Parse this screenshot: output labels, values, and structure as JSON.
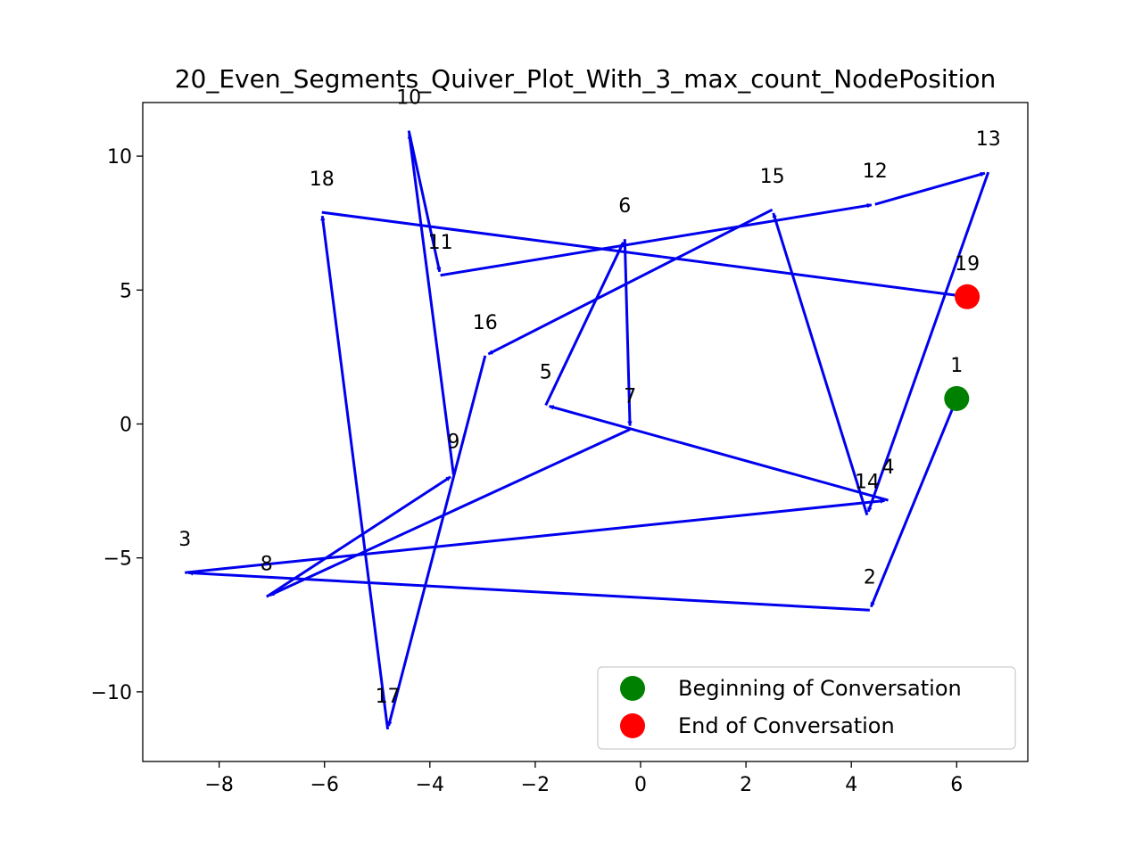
{
  "chart_data": {
    "type": "quiver",
    "title": "20_Even_Segments_Quiver_Plot_With_3_max_count_NodePosition",
    "xlabel": "",
    "ylabel": "",
    "xlim": [
      -9.45,
      7.35
    ],
    "ylim": [
      -12.6,
      12.0
    ],
    "x_ticks": [
      -8,
      -6,
      -4,
      -2,
      0,
      2,
      4,
      6
    ],
    "x_tick_labels": [
      "−8",
      "−6",
      "−4",
      "−2",
      "0",
      "2",
      "4",
      "6"
    ],
    "y_ticks": [
      -10,
      -5,
      0,
      5,
      10
    ],
    "y_tick_labels": [
      "−10",
      "−5",
      "0",
      "5",
      "10"
    ],
    "grid": false,
    "arrow_color": "#0000ee",
    "nodes": [
      {
        "label": "1",
        "x": 6.0,
        "y": 0.95
      },
      {
        "label": "2",
        "x": 4.35,
        "y": -6.95
      },
      {
        "label": "3",
        "x": -8.65,
        "y": -5.55
      },
      {
        "label": "4",
        "x": 4.7,
        "y": -2.85
      },
      {
        "label": "5",
        "x": -1.8,
        "y": 0.7
      },
      {
        "label": "6",
        "x": -0.3,
        "y": 6.9
      },
      {
        "label": "7",
        "x": -0.2,
        "y": -0.2
      },
      {
        "label": "8",
        "x": -7.1,
        "y": -6.45
      },
      {
        "label": "9",
        "x": -3.55,
        "y": -1.9
      },
      {
        "label": "10",
        "x": -4.4,
        "y": 10.95
      },
      {
        "label": "11",
        "x": -3.8,
        "y": 5.55
      },
      {
        "label": "12",
        "x": 4.45,
        "y": 8.2
      },
      {
        "label": "13",
        "x": 6.6,
        "y": 9.4
      },
      {
        "label": "14",
        "x": 4.3,
        "y": -3.4
      },
      {
        "label": "15",
        "x": 2.5,
        "y": 8.0
      },
      {
        "label": "16",
        "x": -2.95,
        "y": 2.55
      },
      {
        "label": "17",
        "x": -4.8,
        "y": -11.4
      },
      {
        "label": "18",
        "x": -6.05,
        "y": 7.9
      },
      {
        "label": "19",
        "x": 6.2,
        "y": 4.75
      }
    ],
    "start_marker": {
      "label": "Beginning of Conversation",
      "x": 6.0,
      "y": 0.95,
      "color": "#008000"
    },
    "end_marker": {
      "label": "End of Conversation",
      "x": 6.2,
      "y": 4.75,
      "color": "#ff0000"
    },
    "legend": {
      "position": "lower-right",
      "entries": [
        {
          "label": "Beginning of Conversation",
          "color": "#008000"
        },
        {
          "label": "End of Conversation",
          "color": "#ff0000"
        }
      ]
    }
  }
}
